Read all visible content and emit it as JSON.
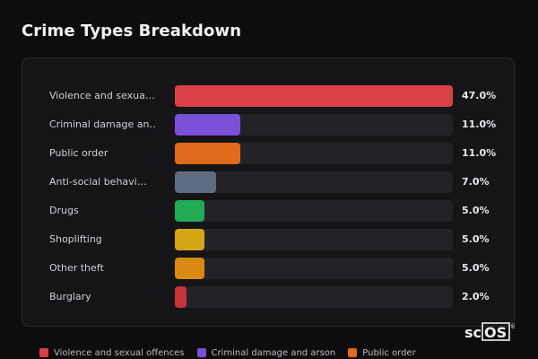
{
  "page": {
    "title": "Crime Types Breakdown"
  },
  "chart_data": {
    "type": "bar",
    "orientation": "horizontal",
    "title": "Crime Types Breakdown",
    "xlim": [
      0,
      47
    ],
    "categories": [
      "Violence and sexua…",
      "Criminal damage an…",
      "Public order",
      "Anti-social behavi…",
      "Drugs",
      "Shoplifting",
      "Other theft",
      "Burglary"
    ],
    "values": [
      47.0,
      11.0,
      11.0,
      7.0,
      5.0,
      5.0,
      5.0,
      2.0
    ],
    "value_labels": [
      "47.0%",
      "11.0%",
      "11.0%",
      "7.0%",
      "5.0%",
      "5.0%",
      "5.0%",
      "2.0%"
    ],
    "colors": [
      "#d94045",
      "#7b4fd6",
      "#e06a1b",
      "#5f6b80",
      "#22aa55",
      "#d4a514",
      "#d88a12",
      "#c8323a"
    ],
    "legend": {
      "placement": "bottom",
      "entries": [
        {
          "label": "Violence and sexual offences",
          "color": "#d94045"
        },
        {
          "label": "Criminal damage and arson",
          "color": "#7b4fd6"
        },
        {
          "label": "Public order",
          "color": "#e06a1b"
        }
      ]
    }
  },
  "branding": {
    "logo_text_sc": "sc",
    "logo_text_os": "OS",
    "logo_mark": "®"
  }
}
